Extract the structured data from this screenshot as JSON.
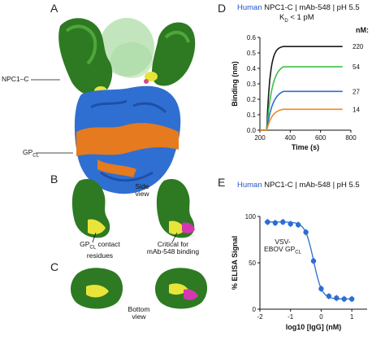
{
  "panels": {
    "A": {
      "letter": "A",
      "npc_label": "NPC1–C",
      "gp_label": "GP",
      "gp_sub": "CL"
    },
    "B": {
      "letter": "B",
      "view_label": "Side\nview",
      "left_caption_1": "GP",
      "left_caption_sub": "CL",
      "left_caption_2": " contact",
      "left_caption_3": "residues",
      "right_caption_1": "Critical for",
      "right_caption_2": "mAb-548 binding"
    },
    "C": {
      "letter": "C",
      "view_label": "Bottom\nview"
    },
    "D": {
      "letter": "D",
      "header_prefix": "Human",
      "header_rest": " NPC1-C | mAb-548 | pH 5.5",
      "kd_label": "K",
      "kd_sub": "D",
      "kd_rest": " < 1 pM",
      "nm_label": "nM:"
    },
    "E": {
      "letter": "E",
      "header_prefix": "Human",
      "header_rest": " NPC1-C | mAb-548 | pH 5.5",
      "annotation_1": "VSV-",
      "annotation_2": "EBOV GP",
      "annotation_sub": "CL"
    }
  },
  "chart_data": [
    {
      "type": "line",
      "title": "Human NPC1-C | mAb-548 | pH 5.5",
      "xlabel": "Time (s)",
      "ylabel": "Binding (nm)",
      "xlim": [
        200,
        800
      ],
      "ylim": [
        0,
        0.6
      ],
      "xticks": [
        "200",
        "400",
        "600",
        "800"
      ],
      "yticks": [
        "0.0",
        "0.1",
        "0.2",
        "0.3",
        "0.4",
        "0.5",
        "0.6"
      ],
      "series": [
        {
          "name": "220",
          "color": "#1a1a1a",
          "plateau": 0.545,
          "rate": 0.045
        },
        {
          "name": "54",
          "color": "#3cc24a",
          "plateau": 0.43,
          "rate": 0.028
        },
        {
          "name": "27",
          "color": "#2b6ed1",
          "plateau": 0.268,
          "rate": 0.025
        },
        {
          "name": "14",
          "color": "#f08a1e",
          "plateau": 0.142,
          "rate": 0.028
        }
      ],
      "assoc_start": 245,
      "assoc_end": 355,
      "dissoc_end": 745
    },
    {
      "type": "scatter",
      "title": "Human NPC1-C | mAb-548 | pH 5.5",
      "xlabel": "log10 [IgG] (nM)",
      "ylabel": "% ELISA Signal",
      "xlim": [
        -2,
        1.5
      ],
      "ylim": [
        0,
        100
      ],
      "xticks": [
        "-2",
        "-1",
        "0",
        "1"
      ],
      "yticks": [
        "0",
        "50",
        "100"
      ],
      "color": "#2b6ed1",
      "x": [
        -1.75,
        -1.5,
        -1.25,
        -1.0,
        -0.75,
        -0.5,
        -0.25,
        0.0,
        0.25,
        0.5,
        0.75,
        1.0
      ],
      "y": [
        94,
        93,
        94,
        92,
        91,
        83,
        52,
        22,
        14,
        12,
        11,
        11
      ],
      "fit": {
        "top": 94,
        "bottom": 11,
        "logIC50": -0.25,
        "hill": 3.2
      }
    }
  ]
}
